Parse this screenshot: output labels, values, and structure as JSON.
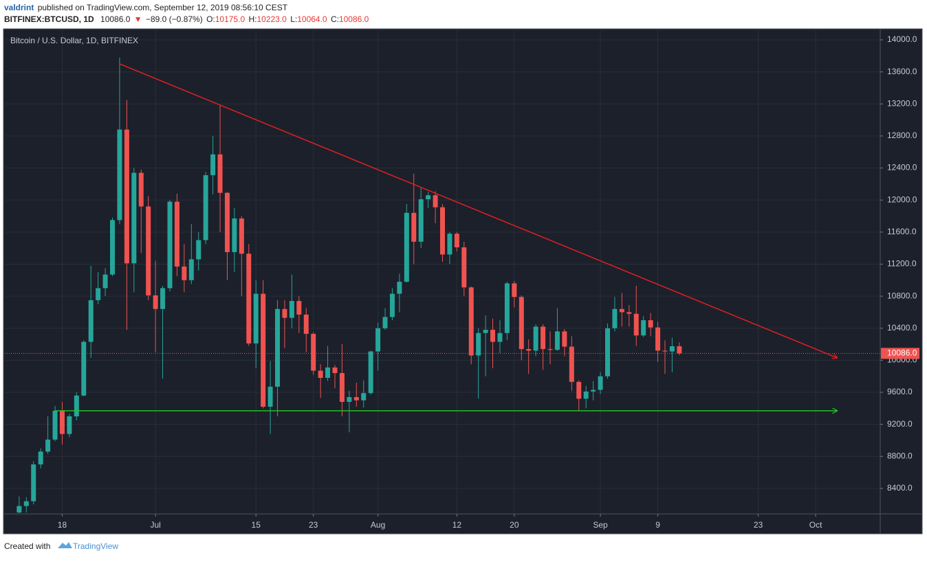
{
  "header": {
    "author": "valdrint",
    "published": "published on TradingView.com, September 12, 2019 08:56:10 CEST",
    "symbol": "BITFINEX:BTCUSD, 1D",
    "price": "10086.0",
    "change_arrow": "▼",
    "change": "−89.0 (−0.87%)",
    "ohlc": [
      {
        "label": "O:",
        "value": "10175.0"
      },
      {
        "label": "H:",
        "value": "10223.0"
      },
      {
        "label": "L:",
        "value": "10064.0"
      },
      {
        "label": "C:",
        "value": "10086.0"
      }
    ]
  },
  "footer": {
    "created_with": "Created with",
    "brand": "TradingView"
  },
  "chart_data": {
    "type": "candlestick",
    "title": "Bitcoin / U.S. Dollar, 1D, BITFINEX",
    "background": "#1c202b",
    "up_color": "#26a69a",
    "down_color": "#ef5350",
    "grid": true,
    "xlim": [
      "06-10",
      "10-10"
    ],
    "ylim": [
      8082,
      14120
    ],
    "xticks": [
      {
        "value": "06-18",
        "label": "18"
      },
      {
        "value": "07-01",
        "label": "Jul"
      },
      {
        "value": "07-15",
        "label": "15"
      },
      {
        "value": "07-23",
        "label": "23"
      },
      {
        "value": "08-01",
        "label": "Aug"
      },
      {
        "value": "08-12",
        "label": "12"
      },
      {
        "value": "08-20",
        "label": "20"
      },
      {
        "value": "09-01",
        "label": "Sep"
      },
      {
        "value": "09-09",
        "label": "9"
      },
      {
        "value": "09-23",
        "label": "23"
      },
      {
        "value": "10-01",
        "label": "Oct"
      }
    ],
    "yticks": [
      {
        "value": 8400,
        "label": "8400.0"
      },
      {
        "value": 8800,
        "label": "8800.0"
      },
      {
        "value": 9200,
        "label": "9200.0"
      },
      {
        "value": 9600,
        "label": "9600.0"
      },
      {
        "value": 10000,
        "label": "10000.0"
      },
      {
        "value": 10400,
        "label": "10400.0"
      },
      {
        "value": 10800,
        "label": "10800.0"
      },
      {
        "value": 11200,
        "label": "11200.0"
      },
      {
        "value": 11600,
        "label": "11600.0"
      },
      {
        "value": 12000,
        "label": "12000.0"
      },
      {
        "value": 12400,
        "label": "12400.0"
      },
      {
        "value": 12800,
        "label": "12800.0"
      },
      {
        "value": 13200,
        "label": "13200.0"
      },
      {
        "value": 13600,
        "label": "13600.0"
      },
      {
        "value": 14000,
        "label": "14000.0"
      }
    ],
    "x": [
      "06-12",
      "06-13",
      "06-14",
      "06-15",
      "06-16",
      "06-17",
      "06-18",
      "06-19",
      "06-20",
      "06-21",
      "06-22",
      "06-23",
      "06-24",
      "06-25",
      "06-26",
      "06-27",
      "06-28",
      "06-29",
      "06-30",
      "07-01",
      "07-02",
      "07-03",
      "07-04",
      "07-05",
      "07-06",
      "07-07",
      "07-08",
      "07-09",
      "07-10",
      "07-11",
      "07-12",
      "07-13",
      "07-14",
      "07-15",
      "07-16",
      "07-17",
      "07-18",
      "07-19",
      "07-20",
      "07-21",
      "07-22",
      "07-23",
      "07-24",
      "07-25",
      "07-26",
      "07-27",
      "07-28",
      "07-29",
      "07-30",
      "07-31",
      "08-01",
      "08-02",
      "08-03",
      "08-04",
      "08-05",
      "08-06",
      "08-07",
      "08-08",
      "08-09",
      "08-10",
      "08-11",
      "08-12",
      "08-13",
      "08-14",
      "08-15",
      "08-16",
      "08-17",
      "08-18",
      "08-19",
      "08-20",
      "08-21",
      "08-22",
      "08-23",
      "08-24",
      "08-25",
      "08-26",
      "08-27",
      "08-28",
      "08-29",
      "08-30",
      "08-31",
      "09-01",
      "09-02",
      "09-03",
      "09-04",
      "09-05",
      "09-06",
      "09-07",
      "09-08",
      "09-09",
      "09-10",
      "09-11",
      "09-12"
    ],
    "open": [
      8100,
      8180,
      8240,
      8700,
      8860,
      9010,
      9370,
      9080,
      9300,
      9560,
      10230,
      10750,
      10900,
      11070,
      11750,
      12880,
      11210,
      12340,
      11920,
      10810,
      10640,
      10900,
      11980,
      11170,
      11000,
      11260,
      11500,
      12310,
      12570,
      12090,
      11350,
      11770,
      11330,
      10210,
      10830,
      9420,
      9670,
      10640,
      10530,
      10740,
      10570,
      10330,
      9870,
      9780,
      9910,
      9840,
      9480,
      9540,
      9500,
      9590,
      10110,
      10400,
      10540,
      10830,
      10980,
      11840,
      11480,
      12010,
      12060,
      11910,
      11320,
      11580,
      11410,
      10910,
      10060,
      10340,
      10380,
      10230,
      10340,
      10960,
      10790,
      10140,
      10120,
      10420,
      10140,
      10130,
      10360,
      10170,
      9730,
      9520,
      9610,
      9630,
      9800,
      10400,
      10640,
      10600,
      10580,
      10310,
      10500,
      10410,
      10120,
      10110,
      10175
    ],
    "high": [
      8300,
      8290,
      8740,
      8900,
      9300,
      9430,
      9480,
      9330,
      9600,
      10250,
      11180,
      11100,
      11150,
      11780,
      13780,
      13250,
      12400,
      12380,
      12050,
      11240,
      10930,
      12000,
      12080,
      11450,
      11700,
      11600,
      12350,
      12800,
      13180,
      12100,
      11900,
      11800,
      11450,
      11000,
      11000,
      9990,
      10750,
      10750,
      11070,
      10800,
      10650,
      10350,
      9950,
      10180,
      9940,
      10200,
      9620,
      9720,
      9750,
      10120,
      10470,
      10650,
      10900,
      11080,
      11950,
      12330,
      12150,
      12100,
      12110,
      11950,
      11600,
      11600,
      11480,
      10920,
      10400,
      10560,
      10520,
      10500,
      10980,
      10990,
      10810,
      10260,
      10450,
      10450,
      10360,
      10650,
      10390,
      10300,
      9750,
      9680,
      9740,
      9850,
      10460,
      10790,
      10840,
      10690,
      10930,
      10550,
      10590,
      10480,
      10250,
      10280,
      10223
    ],
    "low": [
      8090,
      8100,
      8200,
      8650,
      8830,
      8990,
      8950,
      9040,
      9250,
      9550,
      10030,
      10700,
      10800,
      11050,
      11700,
      10380,
      10850,
      11340,
      10750,
      10100,
      9770,
      10860,
      11050,
      10850,
      10950,
      11120,
      11450,
      12070,
      11600,
      11000,
      11100,
      10800,
      10180,
      9900,
      9400,
      9080,
      9300,
      10150,
      10400,
      10340,
      10100,
      9820,
      9530,
      9740,
      9650,
      9300,
      9100,
      9420,
      9410,
      9570,
      9870,
      10380,
      10500,
      10600,
      10970,
      11200,
      11400,
      11900,
      11710,
      11230,
      11200,
      11360,
      10800,
      9950,
      9520,
      9800,
      9900,
      10090,
      10250,
      10660,
      10000,
      9830,
      10050,
      9880,
      9950,
      10120,
      10050,
      9620,
      9370,
      9400,
      9500,
      9580,
      9770,
      10360,
      10420,
      10420,
      10180,
      10290,
      10300,
      9980,
      9830,
      9850,
      10064
    ],
    "close": [
      8180,
      8240,
      8700,
      8860,
      9010,
      9370,
      9080,
      9300,
      9560,
      10230,
      10750,
      10900,
      11070,
      11750,
      12880,
      11210,
      12340,
      11920,
      10810,
      10640,
      10900,
      11980,
      11170,
      11000,
      11260,
      11500,
      12310,
      12570,
      12090,
      11350,
      11770,
      11330,
      10210,
      10830,
      9420,
      9670,
      10640,
      10530,
      10740,
      10570,
      10330,
      9870,
      9780,
      9910,
      9840,
      9480,
      9540,
      9500,
      9590,
      10110,
      10400,
      10540,
      10830,
      10980,
      11840,
      11480,
      12010,
      12060,
      11910,
      11320,
      11580,
      11410,
      10910,
      10060,
      10340,
      10380,
      10230,
      10340,
      10960,
      10790,
      10140,
      10120,
      10420,
      10140,
      10130,
      10360,
      10170,
      9730,
      9520,
      9610,
      9630,
      9800,
      10400,
      10640,
      10600,
      10580,
      10310,
      10500,
      10410,
      10120,
      10110,
      10175,
      10086
    ],
    "last_price": {
      "value": 10086,
      "label": "10086.0",
      "color": "#ef5350"
    },
    "trend_lines": [
      {
        "color": "#e0201f",
        "x": [
          "06-26",
          "10-04"
        ],
        "y": [
          13700,
          10030
        ]
      },
      {
        "color": "#22c322",
        "x": [
          "06-17",
          "10-04"
        ],
        "y": [
          9370,
          9370
        ]
      }
    ]
  }
}
